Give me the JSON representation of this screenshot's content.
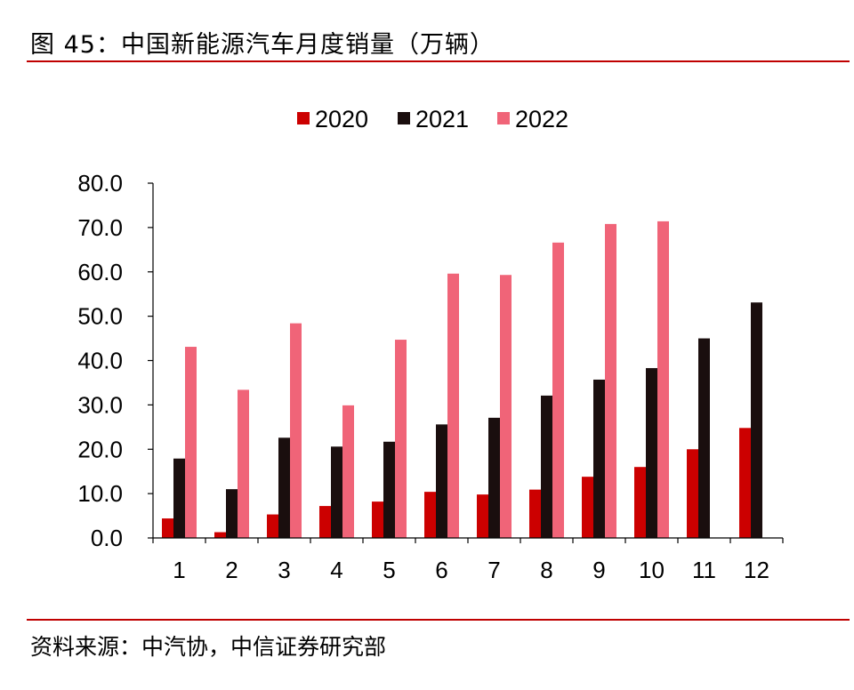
{
  "header": {
    "title": "图 45：中国新能源汽车月度销量（万辆）"
  },
  "footer": {
    "source": "资料来源：中汽协，中信证券研究部"
  },
  "chart_data": {
    "type": "bar",
    "categories": [
      "1",
      "2",
      "3",
      "4",
      "5",
      "6",
      "7",
      "8",
      "9",
      "10",
      "11",
      "12"
    ],
    "series": [
      {
        "name": "2020",
        "color": "#cc0000",
        "values": [
          4.4,
          1.3,
          5.3,
          7.2,
          8.2,
          10.4,
          9.8,
          10.9,
          13.8,
          16.0,
          20.0,
          24.8
        ]
      },
      {
        "name": "2021",
        "color": "#1a0e0e",
        "values": [
          17.9,
          11.0,
          22.6,
          20.6,
          21.7,
          25.6,
          27.1,
          32.1,
          35.7,
          38.3,
          45.0,
          53.1
        ]
      },
      {
        "name": "2022",
        "color": "#f06478",
        "values": [
          43.1,
          33.4,
          48.4,
          29.9,
          44.7,
          59.6,
          59.3,
          66.6,
          70.8,
          71.4,
          null,
          null
        ]
      }
    ],
    "yticks": [
      "0.0",
      "10.0",
      "20.0",
      "30.0",
      "40.0",
      "50.0",
      "60.0",
      "70.0",
      "80.0"
    ],
    "ylim": [
      0,
      80
    ],
    "title": "",
    "xlabel": "",
    "ylabel": "",
    "legend": "top-center",
    "grid": false
  }
}
